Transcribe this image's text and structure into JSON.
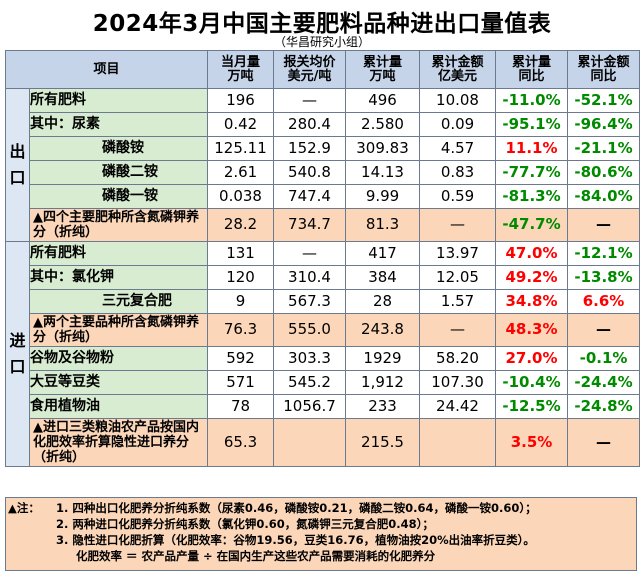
{
  "title": "2024年3月中国主要肥料品种进出口量值表",
  "subtitle": "（华昌研究小组）",
  "headers": {
    "item": "项目",
    "month_qty": [
      "当月量",
      "万吨"
    ],
    "price": [
      "报关均价",
      "美元/吨"
    ],
    "cum_qty": [
      "累计量",
      "万吨"
    ],
    "cum_amount": [
      "累计金额",
      "亿美元"
    ],
    "cum_qty_yoy": [
      "累计量",
      "同比"
    ],
    "cum_amt_yoy": [
      "累计金额",
      "同比"
    ]
  },
  "sections": {
    "export": [
      "出",
      "口"
    ],
    "import": [
      "进",
      "口"
    ]
  },
  "export_rows": [
    {
      "label": "所有肥料",
      "month": "196",
      "price": "—",
      "cum": "496",
      "amount": "10.08",
      "qty_yoy": "-11.0%",
      "amt_yoy": "-52.1%",
      "qty_color": "green",
      "amt_color": "green"
    },
    {
      "label": "其中：尿素",
      "month": "0.42",
      "price": "280.4",
      "cum": "2.580",
      "amount": "0.09",
      "qty_yoy": "-95.1%",
      "amt_yoy": "-96.4%",
      "qty_color": "green",
      "amt_color": "green"
    },
    {
      "label": "磷酸铵",
      "month": "125.11",
      "price": "152.9",
      "cum": "309.83",
      "amount": "4.57",
      "qty_yoy": "11.1%",
      "amt_yoy": "-21.1%",
      "qty_color": "red",
      "amt_color": "green"
    },
    {
      "label": "磷酸二铵",
      "month": "2.61",
      "price": "540.8",
      "cum": "14.13",
      "amount": "0.83",
      "qty_yoy": "-77.7%",
      "amt_yoy": "-80.6%",
      "qty_color": "green",
      "amt_color": "green"
    },
    {
      "label": "磷酸一铵",
      "month": "0.038",
      "price": "747.4",
      "cum": "9.99",
      "amount": "0.59",
      "qty_yoy": "-81.3%",
      "amt_yoy": "-84.0%",
      "qty_color": "green",
      "amt_color": "green"
    },
    {
      "label": "▲四个主要肥种所含氮磷钾养分（折纯）",
      "month": "28.2",
      "price": "734.7",
      "cum": "81.3",
      "amount": "—",
      "qty_yoy": "-47.7%",
      "amt_yoy": "—",
      "qty_color": "green",
      "amt_color": "black"
    }
  ],
  "import_rows": [
    {
      "label": "所有肥料",
      "month": "131",
      "price": "—",
      "cum": "417",
      "amount": "13.97",
      "qty_yoy": "47.0%",
      "amt_yoy": "-12.1%",
      "qty_color": "red",
      "amt_color": "green"
    },
    {
      "label": "其中：氯化钾",
      "month": "120",
      "price": "310.4",
      "cum": "384",
      "amount": "12.05",
      "qty_yoy": "49.2%",
      "amt_yoy": "-13.8%",
      "qty_color": "red",
      "amt_color": "green"
    },
    {
      "label": "三元复合肥",
      "month": "9",
      "price": "567.3",
      "cum": "28",
      "amount": "1.57",
      "qty_yoy": "34.8%",
      "amt_yoy": "6.6%",
      "qty_color": "red",
      "amt_color": "red"
    },
    {
      "label": "▲两个主要品种所含氮磷钾养分（折纯）",
      "month": "76.3",
      "price": "555.0",
      "cum": "243.8",
      "amount": "—",
      "qty_yoy": "48.3%",
      "amt_yoy": "—",
      "qty_color": "red",
      "amt_color": "black"
    },
    {
      "label": "谷物及谷物粉",
      "month": "592",
      "price": "303.3",
      "cum": "1929",
      "amount": "58.20",
      "qty_yoy": "27.0%",
      "amt_yoy": "-0.1%",
      "qty_color": "red",
      "amt_color": "green"
    },
    {
      "label": "大豆等豆类",
      "month": "571",
      "price": "545.2",
      "cum": "1,912",
      "amount": "107.30",
      "qty_yoy": "-10.4%",
      "amt_yoy": "-24.4%",
      "qty_color": "green",
      "amt_color": "green"
    },
    {
      "label": "食用植物油",
      "month": "78",
      "price": "1056.7",
      "cum": "233",
      "amount": "24.42",
      "qty_yoy": "-12.5%",
      "amt_yoy": "-24.8%",
      "qty_color": "green",
      "amt_color": "green"
    },
    {
      "label": "▲进口三类粮油农产品按国内化肥效率折算隐性进口养分（折纯）",
      "month": "65.3",
      "price": "",
      "cum": "215.5",
      "amount": "",
      "qty_yoy": "3.5%",
      "amt_yoy": "—",
      "qty_color": "red",
      "amt_color": "black"
    }
  ],
  "notes": {
    "lead": "▲注：",
    "lines": [
      "1. 四种出口化肥养分折纯系数（尿素0.46，磷酸铵0.21，磷酸二铵0.64，磷酸一铵0.60）；",
      "2. 两种进口化肥养分折纯系数（氯化钾0.60，氮磷钾三元复合肥0.48）；",
      "3. 隐性进口化肥折算（化肥效率：谷物19.56，豆类16.76，植物油按20%出油率折豆类）。",
      "化肥效率 ＝ 农产品产量 ÷ 在国内生产这些农产品需要消耗的化肥养分"
    ]
  },
  "colors": {
    "red": "#ff0000",
    "green": "#008a00",
    "header_bg": "#c6d4ea",
    "label_bg": "#d7ecd0",
    "highlight_bg": "#fbd6b8"
  }
}
